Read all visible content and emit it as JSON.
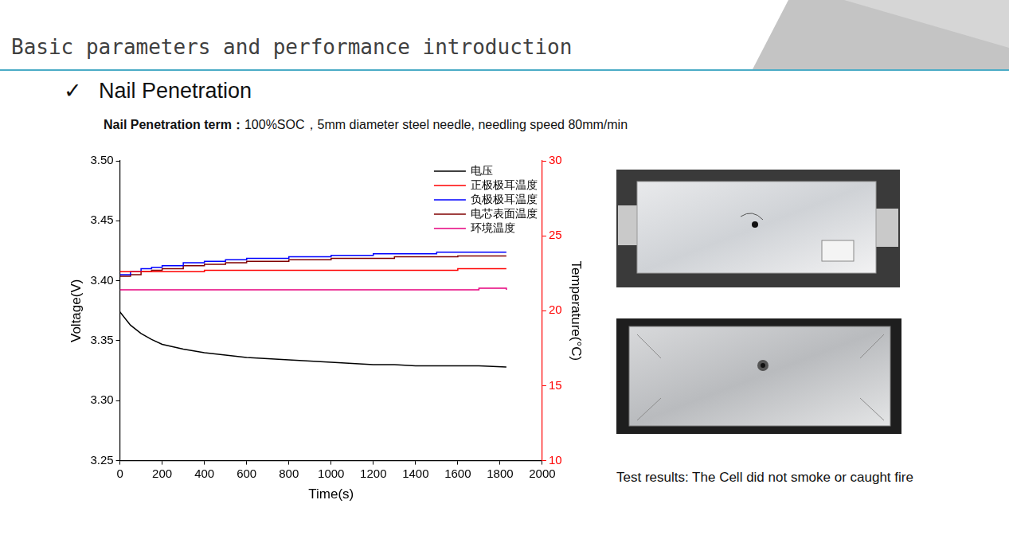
{
  "page": {
    "heading": "Basic parameters and performance introduction",
    "section_mark": "✓",
    "section": "Nail Penetration",
    "condition_label": "Nail Penetration term：",
    "condition_text": "100%SOC，5mm diameter steel needle, needling speed 80mm/min",
    "result": "Test results: The Cell did not smoke or caught fire"
  },
  "chart_data": {
    "type": "line",
    "xlabel": "Time(s)",
    "ylabel": "Voltage(V)",
    "y2label": "Temperature(°C)",
    "x": [
      0,
      50,
      100,
      150,
      200,
      300,
      400,
      500,
      600,
      700,
      800,
      900,
      1000,
      1100,
      1200,
      1300,
      1400,
      1500,
      1600,
      1700,
      1830
    ],
    "xlim": [
      0,
      2000
    ],
    "xticks": [
      0,
      200,
      400,
      600,
      800,
      1000,
      1200,
      1400,
      1600,
      1800,
      2000
    ],
    "ylim": [
      3.25,
      3.5
    ],
    "yticks": [
      3.25,
      {
        "value": 3.3,
        "label": "3.30"
      },
      3.35,
      {
        "value": 3.4,
        "label": "3.40"
      },
      3.45,
      {
        "value": 3.5,
        "label": "3.50"
      }
    ],
    "y2lim": [
      10,
      30
    ],
    "y2ticks": [
      10,
      15,
      20,
      25,
      30
    ],
    "grid": false,
    "legend": "top-right",
    "series": [
      {
        "name": "电压",
        "color": "#000000",
        "line_style": "solid",
        "values": [
          3.374,
          3.363,
          3.356,
          3.351,
          3.347,
          3.343,
          3.34,
          3.338,
          3.336,
          3.335,
          3.334,
          3.333,
          3.332,
          3.331,
          3.33,
          3.33,
          3.329,
          3.329,
          3.329,
          3.329,
          3.328
        ]
      },
      {
        "name": "正极极耳温度",
        "color": "#ff0000",
        "axis": "y2",
        "line_style": "step",
        "values": [
          22.6,
          22.6,
          22.6,
          22.6,
          22.6,
          22.6,
          22.7,
          22.7,
          22.7,
          22.7,
          22.7,
          22.7,
          22.7,
          22.7,
          22.7,
          22.7,
          22.7,
          22.7,
          22.8,
          22.8,
          22.8
        ]
      },
      {
        "name": "负极极耳温度",
        "color": "#0000ff",
        "axis": "y2",
        "line_style": "step",
        "values": [
          22.4,
          22.6,
          22.8,
          22.9,
          23.0,
          23.2,
          23.3,
          23.4,
          23.5,
          23.5,
          23.6,
          23.6,
          23.7,
          23.7,
          23.8,
          23.8,
          23.8,
          23.9,
          23.9,
          23.9,
          23.9
        ]
      },
      {
        "name": "电芯表面温度",
        "color": "#800000",
        "axis": "y2",
        "line_style": "step",
        "values": [
          22.3,
          22.4,
          22.6,
          22.7,
          22.8,
          23.0,
          23.1,
          23.2,
          23.3,
          23.3,
          23.4,
          23.4,
          23.5,
          23.5,
          23.5,
          23.6,
          23.6,
          23.6,
          23.65,
          23.65,
          23.65
        ]
      },
      {
        "name": "环境温度",
        "color": "#e6007e",
        "axis": "y2",
        "line_style": "step",
        "values": [
          21.4,
          21.4,
          21.4,
          21.4,
          21.4,
          21.4,
          21.4,
          21.4,
          21.4,
          21.4,
          21.4,
          21.4,
          21.4,
          21.4,
          21.4,
          21.4,
          21.4,
          21.4,
          21.4,
          21.5,
          21.4
        ]
      }
    ]
  }
}
